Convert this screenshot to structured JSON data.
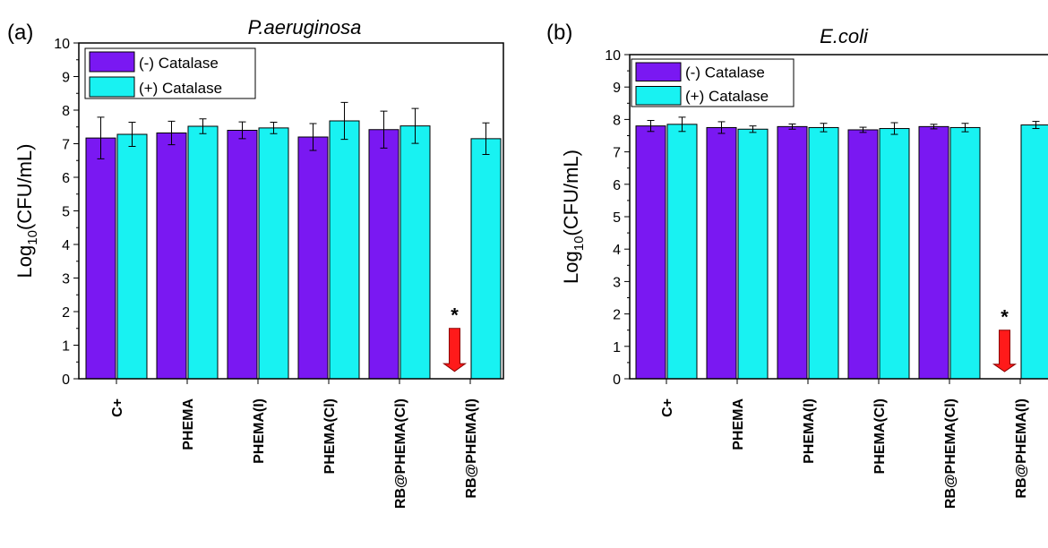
{
  "colors": {
    "minus": "#7a18f2",
    "plus": "#18f2f2",
    "arrow": "#ff1a1a",
    "axis": "#000000"
  },
  "chart_data": [
    {
      "type": "bar",
      "panel_label": "(a)",
      "title": "P.aeruginosa",
      "ylabel_main": "Log",
      "ylabel_sub": "10",
      "ylabel_rest": "(CFU/mL)",
      "ylim": [
        0,
        10
      ],
      "yticks": [
        "0",
        "1",
        "2",
        "3",
        "4",
        "5",
        "6",
        "7",
        "8",
        "9",
        "10"
      ],
      "categories": [
        "C+",
        "PHEMA",
        "PHEMA(I)",
        "PHEMA(Cl)",
        "RB@PHEMA(Cl)",
        "RB@PHEMA(I)"
      ],
      "legend": [
        "(-) Catalase",
        "(+) Catalase"
      ],
      "legend_position": "top-left",
      "series": [
        {
          "name": "(-) Catalase",
          "values": [
            7.17,
            7.32,
            7.4,
            7.2,
            7.42,
            0
          ],
          "errors": [
            0.62,
            0.35,
            0.25,
            0.4,
            0.55,
            0
          ]
        },
        {
          "name": "(+) Catalase",
          "values": [
            7.28,
            7.52,
            7.47,
            7.68,
            7.53,
            7.15
          ],
          "errors": [
            0.36,
            0.22,
            0.17,
            0.55,
            0.52,
            0.47
          ]
        }
      ],
      "annotation": {
        "category_index": 5,
        "symbol": "*",
        "note": "arrow"
      }
    },
    {
      "type": "bar",
      "panel_label": "(b)",
      "title": "E.coli",
      "ylabel_main": "Log",
      "ylabel_sub": "10",
      "ylabel_rest": "(CFU/mL)",
      "ylim": [
        0,
        10
      ],
      "yticks": [
        "0",
        "1",
        "2",
        "3",
        "4",
        "5",
        "6",
        "7",
        "8",
        "9",
        "10"
      ],
      "categories": [
        "C+",
        "PHEMA",
        "PHEMA(I)",
        "PHEMA(Cl)",
        "RB@PHEMA(Cl)",
        "RB@PHEMA(I)"
      ],
      "legend": [
        "(-) Catalase",
        "(+) Catalase"
      ],
      "legend_position": "top-left",
      "series": [
        {
          "name": "(-) Catalase",
          "values": [
            7.8,
            7.75,
            7.78,
            7.68,
            7.78,
            0
          ],
          "errors": [
            0.17,
            0.18,
            0.08,
            0.08,
            0.07,
            0
          ]
        },
        {
          "name": "(+) Catalase",
          "values": [
            7.85,
            7.7,
            7.75,
            7.72,
            7.75,
            7.83
          ],
          "errors": [
            0.22,
            0.1,
            0.13,
            0.18,
            0.13,
            0.11
          ]
        }
      ],
      "annotation": {
        "category_index": 5,
        "symbol": "*",
        "note": "arrow"
      }
    }
  ]
}
